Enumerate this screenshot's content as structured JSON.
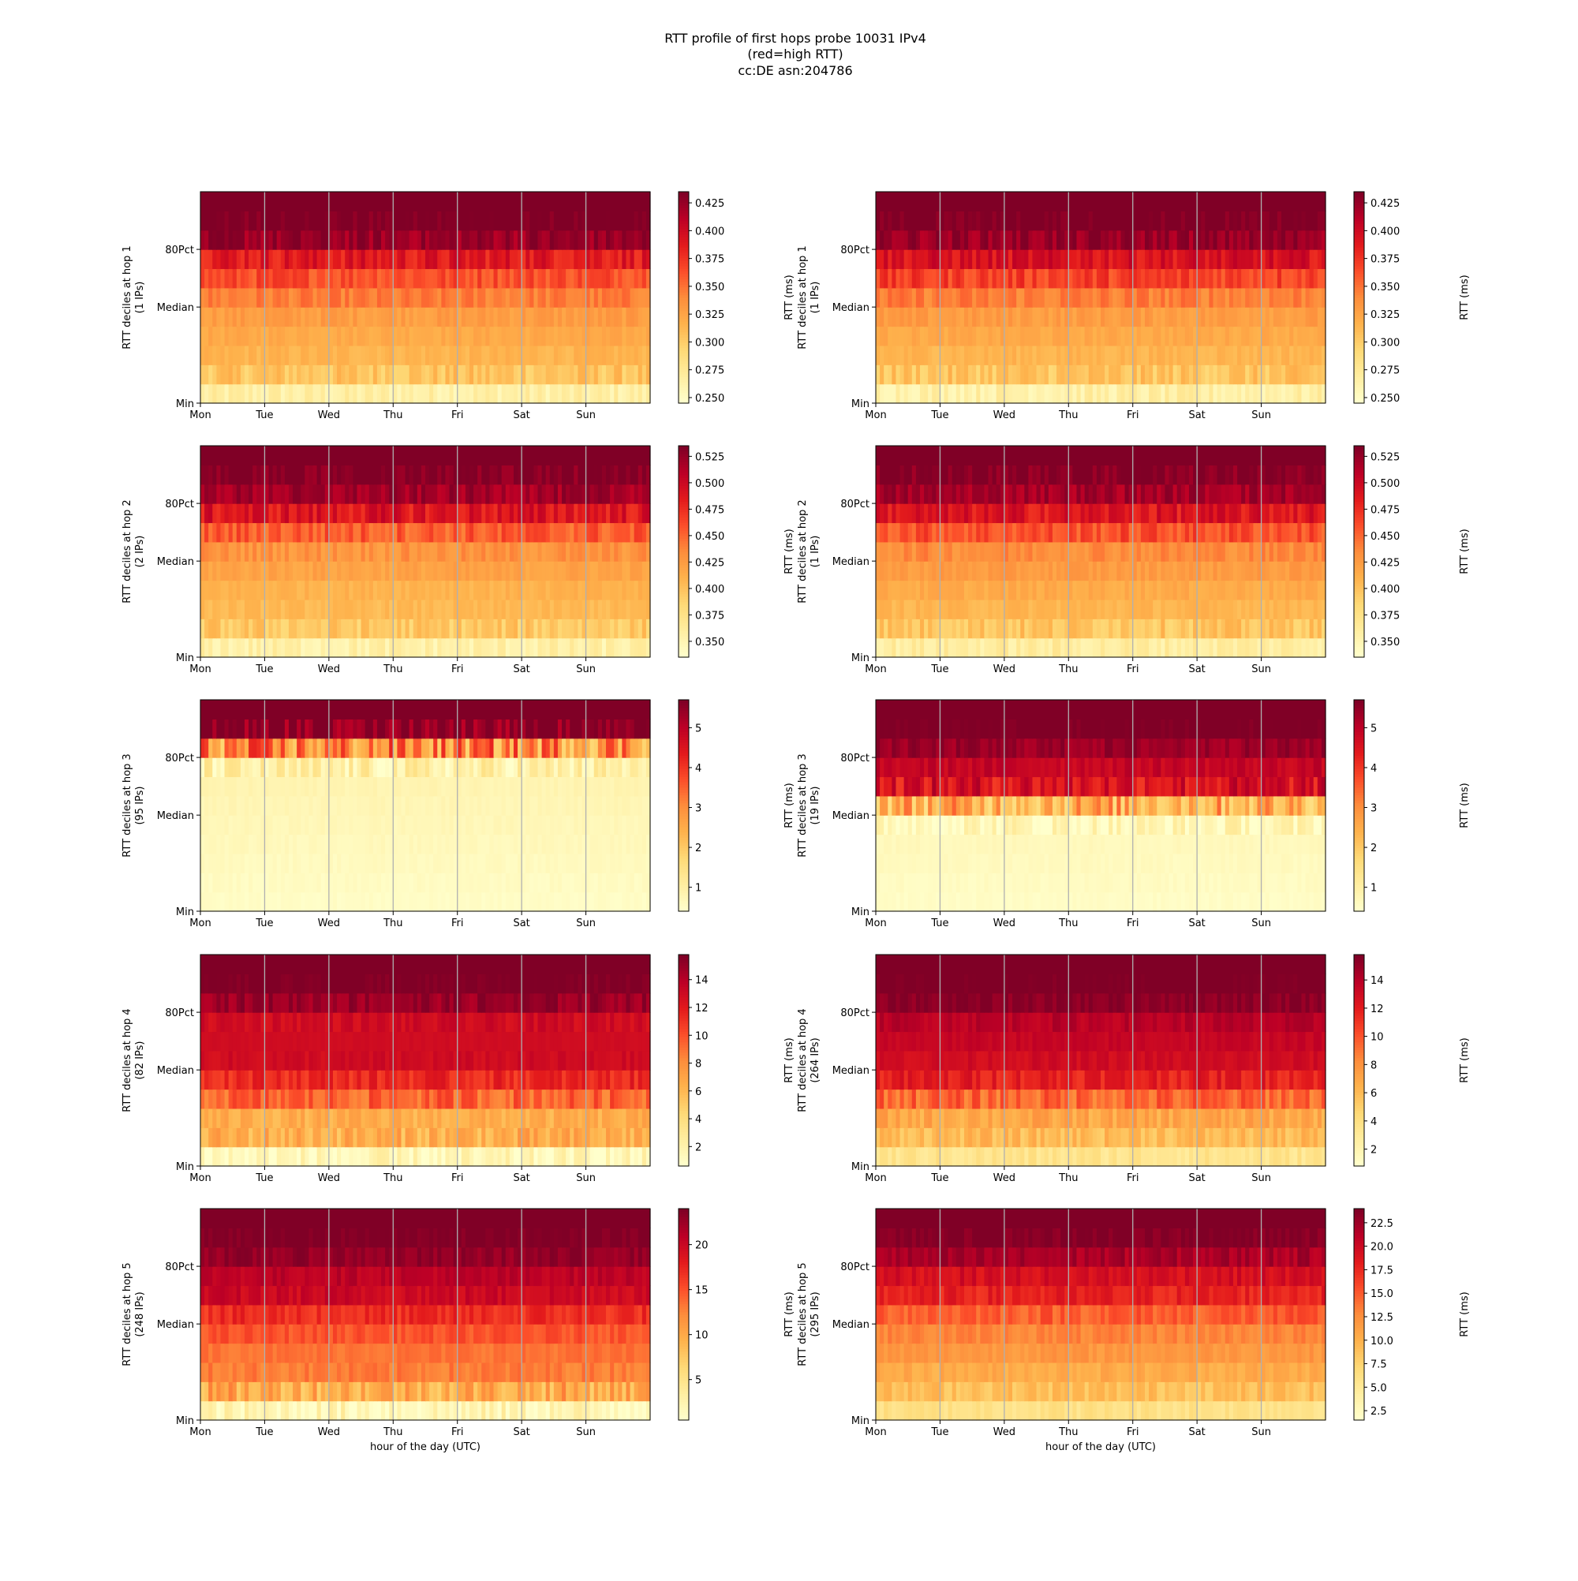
{
  "figure": {
    "title": "RTT profile of first hops probe 10031 IPv4",
    "subtitle": "(red=high RTT)",
    "subtitle2": "cc:DE asn:204786",
    "xlabel": "hour of the day (UTC)",
    "colorbar_label": "RTT (ms)"
  },
  "chart_data": [
    {
      "type": "heatmap",
      "panel": "hop1-left",
      "ylabel": "RTT deciles at hop 1",
      "ylabel2": "(1 IPs)",
      "x_ticks": [
        "Mon",
        "Tue",
        "Wed",
        "Thu",
        "Fri",
        "Sat",
        "Sun"
      ],
      "y_ticks": [
        "Min",
        "Median",
        "80Pct"
      ],
      "deciles": [
        0.265,
        0.305,
        0.315,
        0.322,
        0.33,
        0.345,
        0.365,
        0.39,
        0.425,
        0.44
      ],
      "clim": [
        0.245,
        0.435
      ],
      "cbar_ticks": [
        0.25,
        0.275,
        0.3,
        0.325,
        0.35,
        0.375,
        0.4,
        0.425
      ],
      "cbar_tick_labels": [
        "0.250",
        "0.275",
        "0.300",
        "0.325",
        "0.350",
        "0.375",
        "0.400",
        "0.425"
      ]
    },
    {
      "type": "heatmap",
      "panel": "hop1-right",
      "ylabel": "RTT deciles at hop 1",
      "ylabel2": "(1 IPs)",
      "x_ticks": [
        "Mon",
        "Tue",
        "Wed",
        "Thu",
        "Fri",
        "Sat",
        "Sun"
      ],
      "y_ticks": [
        "Min",
        "Median",
        "80Pct"
      ],
      "deciles": [
        0.265,
        0.305,
        0.315,
        0.322,
        0.33,
        0.345,
        0.37,
        0.395,
        0.425,
        0.44
      ],
      "clim": [
        0.245,
        0.435
      ],
      "cbar_ticks": [
        0.25,
        0.275,
        0.3,
        0.325,
        0.35,
        0.375,
        0.4,
        0.425
      ],
      "cbar_tick_labels": [
        "0.250",
        "0.275",
        "0.300",
        "0.325",
        "0.350",
        "0.375",
        "0.400",
        "0.425"
      ]
    },
    {
      "type": "heatmap",
      "panel": "hop2-left",
      "ylabel": "RTT deciles at hop 2",
      "ylabel2": "(2 IPs)",
      "x_ticks": [
        "Mon",
        "Tue",
        "Wed",
        "Thu",
        "Fri",
        "Sat",
        "Sun"
      ],
      "y_ticks": [
        "Min",
        "Median",
        "80Pct"
      ],
      "deciles": [
        0.355,
        0.395,
        0.405,
        0.41,
        0.42,
        0.43,
        0.455,
        0.49,
        0.52,
        0.535
      ],
      "clim": [
        0.335,
        0.535
      ],
      "cbar_ticks": [
        0.35,
        0.375,
        0.4,
        0.425,
        0.45,
        0.475,
        0.5,
        0.525
      ],
      "cbar_tick_labels": [
        "0.350",
        "0.375",
        "0.400",
        "0.425",
        "0.450",
        "0.475",
        "0.500",
        "0.525"
      ]
    },
    {
      "type": "heatmap",
      "panel": "hop2-right",
      "ylabel": "RTT deciles at hop 2",
      "ylabel2": "(1 IPs)",
      "x_ticks": [
        "Mon",
        "Tue",
        "Wed",
        "Thu",
        "Fri",
        "Sat",
        "Sun"
      ],
      "y_ticks": [
        "Min",
        "Median",
        "80Pct"
      ],
      "deciles": [
        0.36,
        0.398,
        0.408,
        0.415,
        0.425,
        0.435,
        0.46,
        0.49,
        0.52,
        0.535
      ],
      "clim": [
        0.335,
        0.535
      ],
      "cbar_ticks": [
        0.35,
        0.375,
        0.4,
        0.425,
        0.45,
        0.475,
        0.5,
        0.525
      ],
      "cbar_tick_labels": [
        "0.350",
        "0.375",
        "0.400",
        "0.425",
        "0.450",
        "0.475",
        "0.500",
        "0.525"
      ]
    },
    {
      "type": "heatmap",
      "panel": "hop3-left",
      "ylabel": "RTT deciles at hop 3",
      "ylabel2": "(95 IPs)",
      "x_ticks": [
        "Mon",
        "Tue",
        "Wed",
        "Thu",
        "Fri",
        "Sat",
        "Sun"
      ],
      "y_ticks": [
        "Min",
        "Median",
        "80Pct"
      ],
      "deciles": [
        0.5,
        0.55,
        0.6,
        0.65,
        0.7,
        0.75,
        0.8,
        0.9,
        3.0,
        5.8
      ],
      "clim": [
        0.4,
        5.7
      ],
      "cbar_ticks": [
        1,
        2,
        3,
        4,
        5
      ],
      "cbar_tick_labels": [
        "1",
        "2",
        "3",
        "4",
        "5"
      ]
    },
    {
      "type": "heatmap",
      "panel": "hop3-right",
      "ylabel": "RTT deciles at hop 3",
      "ylabel2": "(19 IPs)",
      "x_ticks": [
        "Mon",
        "Tue",
        "Wed",
        "Thu",
        "Fri",
        "Sat",
        "Sun"
      ],
      "y_ticks": [
        "Min",
        "Median",
        "80Pct"
      ],
      "deciles": [
        0.5,
        0.55,
        0.6,
        0.65,
        0.7,
        2.5,
        4.6,
        4.9,
        5.4,
        5.8
      ],
      "clim": [
        0.4,
        5.7
      ],
      "cbar_ticks": [
        1,
        2,
        3,
        4,
        5
      ],
      "cbar_tick_labels": [
        "1",
        "2",
        "3",
        "4",
        "5"
      ]
    },
    {
      "type": "heatmap",
      "panel": "hop4-left",
      "ylabel": "RTT deciles at hop 4",
      "ylabel2": "(82 IPs)",
      "x_ticks": [
        "Mon",
        "Tue",
        "Wed",
        "Thu",
        "Fri",
        "Sat",
        "Sun"
      ],
      "y_ticks": [
        "Min",
        "Median",
        "80Pct"
      ],
      "deciles": [
        1.2,
        6.5,
        6.5,
        9.5,
        11.5,
        13.0,
        13.0,
        13.0,
        15.0,
        16.0
      ],
      "clim": [
        0.6,
        15.8
      ],
      "cbar_ticks": [
        2,
        4,
        6,
        8,
        10,
        12,
        14
      ],
      "cbar_tick_labels": [
        "2",
        "4",
        "6",
        "8",
        "10",
        "12",
        "14"
      ]
    },
    {
      "type": "heatmap",
      "panel": "hop4-right",
      "ylabel": "RTT deciles at hop 4",
      "ylabel2": "(264 IPs)",
      "x_ticks": [
        "Mon",
        "Tue",
        "Wed",
        "Thu",
        "Fri",
        "Sat",
        "Sun"
      ],
      "y_ticks": [
        "Min",
        "Median",
        "80Pct"
      ],
      "deciles": [
        3.5,
        6.0,
        7.0,
        9.5,
        12.0,
        13.0,
        13.5,
        14.0,
        15.5,
        16.0
      ],
      "clim": [
        0.8,
        15.8
      ],
      "cbar_ticks": [
        2,
        4,
        6,
        8,
        10,
        12,
        14
      ],
      "cbar_tick_labels": [
        "2",
        "4",
        "6",
        "8",
        "10",
        "12",
        "14"
      ]
    },
    {
      "type": "heatmap",
      "panel": "hop5-left",
      "ylabel": "RTT deciles at hop 5",
      "ylabel2": "(248 IPs)",
      "x_ticks": [
        "Mon",
        "Tue",
        "Wed",
        "Thu",
        "Fri",
        "Sat",
        "Sun"
      ],
      "y_ticks": [
        "Min",
        "Median",
        "80Pct"
      ],
      "deciles": [
        2.0,
        10.0,
        13.0,
        13.5,
        15.0,
        17.0,
        20.0,
        21.0,
        23.0,
        24.0
      ],
      "clim": [
        0.5,
        24.0
      ],
      "cbar_ticks": [
        5,
        10,
        15,
        20
      ],
      "cbar_tick_labels": [
        "5",
        "10",
        "15",
        "20"
      ]
    },
    {
      "type": "heatmap",
      "panel": "hop5-right",
      "ylabel": "RTT deciles at hop 5",
      "ylabel2": "(295 IPs)",
      "x_ticks": [
        "Mon",
        "Tue",
        "Wed",
        "Thu",
        "Fri",
        "Sat",
        "Sun"
      ],
      "y_ticks": [
        "Min",
        "Median",
        "80Pct"
      ],
      "deciles": [
        6.0,
        9.0,
        10.5,
        12.0,
        13.0,
        15.0,
        18.0,
        19.5,
        22.0,
        24.0
      ],
      "clim": [
        1.5,
        24.0
      ],
      "cbar_ticks": [
        2.5,
        5.0,
        7.5,
        10.0,
        12.5,
        15.0,
        17.5,
        20.0,
        22.5
      ],
      "cbar_tick_labels": [
        "2.5",
        "5.0",
        "7.5",
        "10.0",
        "12.5",
        "15.0",
        "17.5",
        "20.0",
        "22.5"
      ]
    }
  ]
}
